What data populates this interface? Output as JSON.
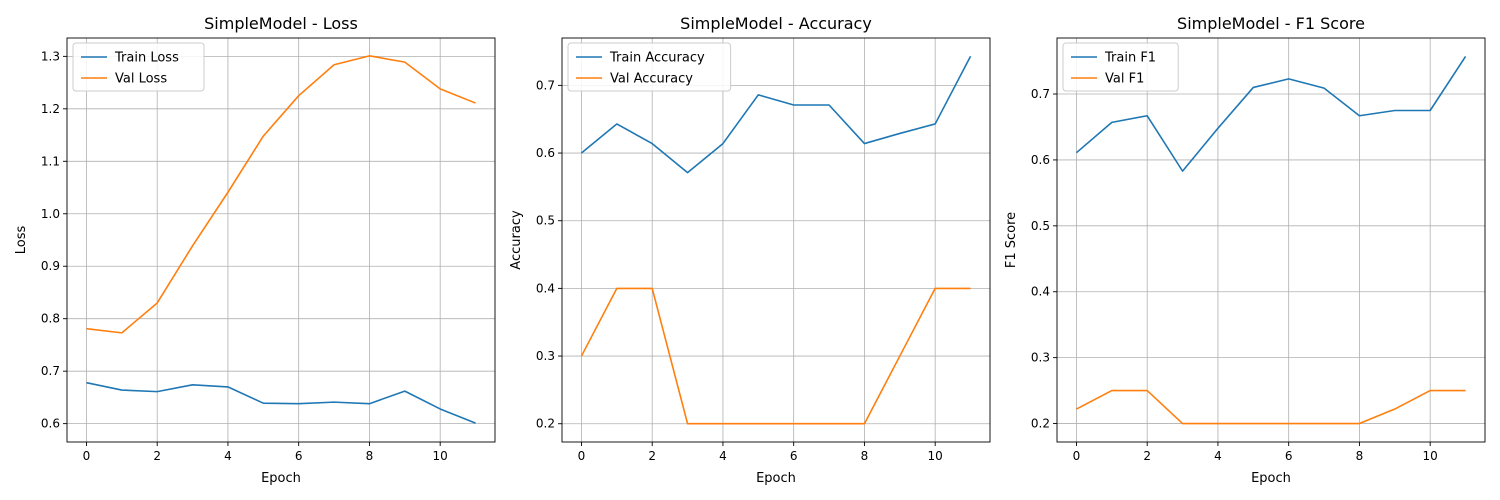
{
  "colors": {
    "series_1": "#1f77b4",
    "series_2": "#ff7f0e",
    "grid": "#b0b0b0",
    "axes": "#000000"
  },
  "chart_data": [
    {
      "type": "line",
      "title": "SimpleModel - Loss",
      "xlabel": "Epoch",
      "ylabel": "Loss",
      "x": [
        0,
        1,
        2,
        3,
        4,
        5,
        6,
        7,
        8,
        9,
        10,
        11
      ],
      "xlim": [
        -0.55,
        11.55
      ],
      "ylim": [
        0.565,
        1.335
      ],
      "xticks": [
        0,
        2,
        4,
        6,
        8,
        10
      ],
      "yticks": [
        0.6,
        0.7,
        0.8,
        0.9,
        1.0,
        1.1,
        1.2,
        1.3
      ],
      "ytick_labels": [
        "0.6",
        "0.7",
        "0.8",
        "0.9",
        "1.0",
        "1.1",
        "1.2",
        "1.3"
      ],
      "grid": true,
      "legend": "upper-left",
      "series": [
        {
          "name": "Train Loss",
          "values": [
            0.678,
            0.664,
            0.661,
            0.674,
            0.67,
            0.639,
            0.638,
            0.641,
            0.638,
            0.662,
            0.628,
            0.601
          ]
        },
        {
          "name": "Val Loss",
          "values": [
            0.781,
            0.773,
            0.83,
            0.939,
            1.041,
            1.148,
            1.225,
            1.284,
            1.301,
            1.289,
            1.238,
            1.211
          ]
        }
      ]
    },
    {
      "type": "line",
      "title": "SimpleModel - Accuracy",
      "xlabel": "Epoch",
      "ylabel": "Accuracy",
      "x": [
        0,
        1,
        2,
        3,
        4,
        5,
        6,
        7,
        8,
        9,
        10,
        11
      ],
      "xlim": [
        -0.55,
        11.55
      ],
      "ylim": [
        0.173,
        0.77
      ],
      "xticks": [
        0,
        2,
        4,
        6,
        8,
        10
      ],
      "yticks": [
        0.2,
        0.3,
        0.4,
        0.5,
        0.6,
        0.7
      ],
      "ytick_labels": [
        "0.2",
        "0.3",
        "0.4",
        "0.5",
        "0.6",
        "0.7"
      ],
      "grid": true,
      "legend": "upper-left",
      "series": [
        {
          "name": "Train Accuracy",
          "values": [
            0.6,
            0.643,
            0.614,
            0.571,
            0.614,
            0.686,
            0.671,
            0.671,
            0.614,
            0.629,
            0.643,
            0.743
          ]
        },
        {
          "name": "Val Accuracy",
          "values": [
            0.3,
            0.4,
            0.4,
            0.2,
            0.2,
            0.2,
            0.2,
            0.2,
            0.2,
            0.3,
            0.4,
            0.4
          ]
        }
      ]
    },
    {
      "type": "line",
      "title": "SimpleModel - F1 Score",
      "xlabel": "Epoch",
      "ylabel": "F1 Score",
      "x": [
        0,
        1,
        2,
        3,
        4,
        5,
        6,
        7,
        8,
        9,
        10,
        11
      ],
      "xlim": [
        -0.55,
        11.55
      ],
      "ylim": [
        0.172,
        0.785
      ],
      "xticks": [
        0,
        2,
        4,
        6,
        8,
        10
      ],
      "yticks": [
        0.2,
        0.3,
        0.4,
        0.5,
        0.6,
        0.7
      ],
      "ytick_labels": [
        "0.2",
        "0.3",
        "0.4",
        "0.5",
        "0.6",
        "0.7"
      ],
      "grid": true,
      "legend": "upper-left",
      "series": [
        {
          "name": "Train F1",
          "values": [
            0.611,
            0.657,
            0.667,
            0.583,
            0.648,
            0.71,
            0.723,
            0.709,
            0.667,
            0.675,
            0.675,
            0.757
          ]
        },
        {
          "name": "Val F1",
          "values": [
            0.222,
            0.25,
            0.25,
            0.2,
            0.2,
            0.2,
            0.2,
            0.2,
            0.2,
            0.222,
            0.25,
            0.25
          ]
        }
      ]
    }
  ]
}
